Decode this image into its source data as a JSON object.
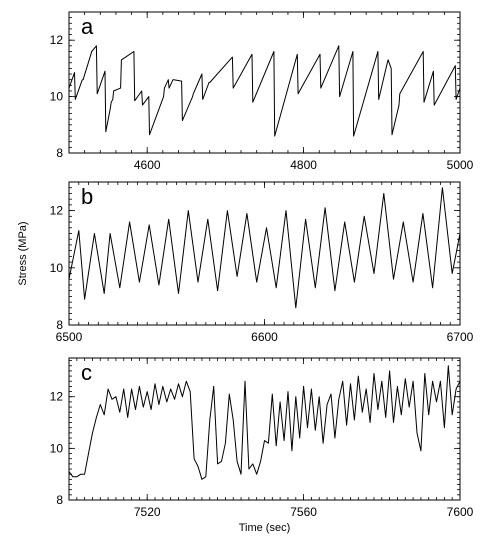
{
  "figure": {
    "ylabel": "Stress (MPa)",
    "xlabel": "Time (sec)"
  },
  "chart_data": [
    {
      "type": "line",
      "panel": "a",
      "title": "",
      "xlabel": "",
      "ylabel": "Stress (MPa)",
      "xlim": [
        4500,
        5000
      ],
      "ylim": [
        8,
        13
      ],
      "xticks": [
        4600,
        4800,
        5000
      ],
      "yticks": [
        8,
        10,
        12
      ],
      "grid": false,
      "x": [
        4500,
        4507,
        4508,
        4517,
        4518,
        4528,
        4529,
        4535,
        4536,
        4546,
        4547,
        4553,
        4554,
        4556,
        4557,
        4566,
        4567,
        4583,
        4584,
        4593,
        4594,
        4602,
        4603,
        4621,
        4622,
        4627,
        4628,
        4633,
        4634,
        4644,
        4645,
        4658,
        4659,
        4670,
        4671,
        4679,
        4680,
        4709,
        4710,
        4734,
        4735,
        4762,
        4763,
        4792,
        4793,
        4821,
        4822,
        4845,
        4846,
        4863,
        4864,
        4895,
        4896,
        4907,
        4908,
        4912,
        4913,
        4922,
        4923,
        4953,
        4954,
        4966,
        4967,
        4994,
        4995,
        5000
      ],
      "y": [
        10.3,
        10.85,
        9.9,
        10.6,
        10.6,
        11.5,
        11.6,
        11.8,
        10.1,
        10.9,
        8.75,
        9.6,
        9.8,
        9.9,
        10.2,
        10.3,
        11.3,
        11.6,
        9.85,
        10.2,
        9.7,
        10.0,
        8.65,
        10.0,
        10.3,
        10.6,
        10.3,
        10.6,
        10.6,
        10.55,
        9.15,
        10.0,
        10.1,
        10.8,
        9.9,
        10.5,
        10.5,
        11.4,
        10.3,
        11.5,
        9.8,
        11.6,
        8.6,
        11.5,
        10.1,
        11.5,
        10.3,
        11.8,
        10.0,
        11.6,
        8.6,
        11.6,
        9.9,
        11.2,
        11.3,
        11.0,
        8.65,
        9.7,
        10.1,
        11.6,
        9.8,
        10.9,
        9.7,
        11.1,
        9.9,
        10.3
      ]
    },
    {
      "type": "line",
      "panel": "b",
      "title": "",
      "xlabel": "",
      "ylabel": "Stress (MPa)",
      "xlim": [
        6500,
        6700
      ],
      "ylim": [
        8,
        13
      ],
      "xticks": [
        6500,
        6600,
        6700
      ],
      "yticks": [
        8,
        10,
        12
      ],
      "grid": false,
      "x": [
        6500,
        6505,
        6508,
        6513,
        6518,
        6521,
        6526,
        6531,
        6536,
        6541,
        6546,
        6551,
        6556,
        6561,
        6566,
        6571,
        6576,
        6581,
        6586,
        6591,
        6596,
        6601,
        6606,
        6611,
        6616,
        6621,
        6626,
        6631,
        6636,
        6641,
        6646,
        6651,
        6656,
        6661,
        6666,
        6671,
        6676,
        6681,
        6686,
        6691,
        6696,
        6700
      ],
      "y": [
        9.6,
        11.3,
        8.9,
        11.2,
        9.1,
        11.2,
        9.3,
        11.6,
        9.5,
        11.5,
        9.4,
        11.7,
        9.1,
        12.0,
        9.5,
        11.7,
        9.2,
        12.0,
        9.7,
        11.9,
        9.5,
        11.4,
        9.3,
        12.0,
        8.6,
        11.7,
        9.3,
        12.1,
        9.2,
        11.6,
        9.5,
        11.8,
        9.8,
        12.6,
        9.6,
        11.6,
        9.5,
        11.9,
        9.3,
        12.8,
        9.8,
        11.2
      ]
    },
    {
      "type": "line",
      "panel": "c",
      "title": "",
      "xlabel": "Time (sec)",
      "ylabel": "Stress (MPa)",
      "xlim": [
        7500,
        7600
      ],
      "ylim": [
        8,
        13.5
      ],
      "xticks": [
        7520,
        7560,
        7600
      ],
      "yticks": [
        8,
        10,
        12
      ],
      "grid": false,
      "x": [
        7500,
        7501,
        7502,
        7503,
        7504,
        7505,
        7506,
        7507,
        7508,
        7509,
        7510,
        7511,
        7512,
        7513,
        7514,
        7515,
        7516,
        7517,
        7518,
        7519,
        7520,
        7521,
        7522,
        7523,
        7524,
        7525,
        7526,
        7527,
        7528,
        7529,
        7530,
        7531,
        7532,
        7533,
        7534,
        7535,
        7536,
        7537,
        7538,
        7539,
        7540,
        7541,
        7542,
        7543,
        7544,
        7545,
        7546,
        7547,
        7548,
        7549,
        7550,
        7551,
        7552,
        7553,
        7554,
        7555,
        7556,
        7557,
        7558,
        7559,
        7560,
        7561,
        7562,
        7563,
        7564,
        7565,
        7566,
        7567,
        7568,
        7569,
        7570,
        7571,
        7572,
        7573,
        7574,
        7575,
        7576,
        7577,
        7578,
        7579,
        7580,
        7581,
        7582,
        7583,
        7584,
        7585,
        7586,
        7587,
        7588,
        7589,
        7590,
        7591,
        7592,
        7593,
        7594,
        7595,
        7596,
        7597,
        7598,
        7599,
        7600
      ],
      "y": [
        9.1,
        8.9,
        8.9,
        9.0,
        9.0,
        9.8,
        10.6,
        11.2,
        11.7,
        11.3,
        12.3,
        11.9,
        12.0,
        11.4,
        12.3,
        11.2,
        12.3,
        11.5,
        12.4,
        11.6,
        12.2,
        11.5,
        12.5,
        11.7,
        12.4,
        11.8,
        12.3,
        11.9,
        12.5,
        12.0,
        12.6,
        12.2,
        9.6,
        9.3,
        8.8,
        8.9,
        11.1,
        12.4,
        9.4,
        9.5,
        10.2,
        12.1,
        11.1,
        9.5,
        9.0,
        12.6,
        9.2,
        9.4,
        9.0,
        9.5,
        10.3,
        10.2,
        12.1,
        10.1,
        11.8,
        10.3,
        12.2,
        9.9,
        12.0,
        10.4,
        12.4,
        10.8,
        12.3,
        10.7,
        12.0,
        10.2,
        11.7,
        12.1,
        10.4,
        11.9,
        12.6,
        10.9,
        12.5,
        11.1,
        12.8,
        11.4,
        12.3,
        11.0,
        12.9,
        11.5,
        12.6,
        11.2,
        13.0,
        11.0,
        12.4,
        11.3,
        12.7,
        11.6,
        12.6,
        10.6,
        9.9,
        12.9,
        11.3,
        12.6,
        11.8,
        12.6,
        10.8,
        13.2,
        11.3,
        12.3,
        12.6
      ]
    }
  ]
}
